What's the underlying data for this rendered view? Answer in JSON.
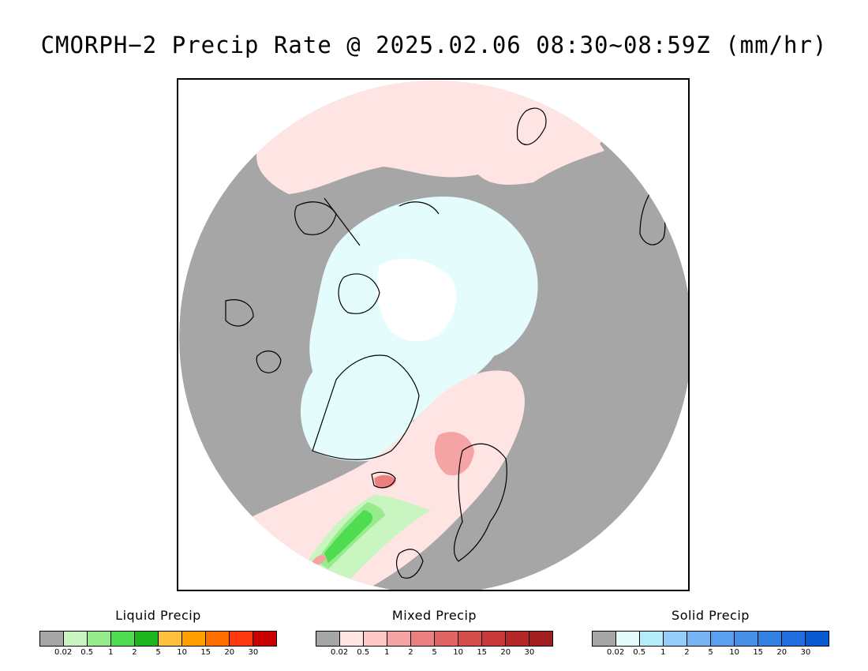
{
  "title": "CMORPH−2 Precip Rate @ 2025.02.06 08:30~08:59Z (mm/hr)",
  "map": {
    "projection": "north-polar-stereographic",
    "background_color": "#a6a6a6",
    "coastline_color": "#000000"
  },
  "legends": [
    {
      "id": "liquid",
      "title": "Liquid Precip",
      "colors": [
        "#a6a6a6",
        "#c8f5c0",
        "#96ec8c",
        "#50dc50",
        "#1eb41e",
        "#ffc040",
        "#ffa000",
        "#ff7000",
        "#ff3a10",
        "#c80000"
      ],
      "ticks": [
        "0.02",
        "0.5",
        "1",
        "2",
        "5",
        "10",
        "15",
        "20",
        "30"
      ]
    },
    {
      "id": "mixed",
      "title": "Mixed Precip",
      "colors": [
        "#a6a6a6",
        "#ffe4e4",
        "#ffc8c8",
        "#f4a4a4",
        "#ea8080",
        "#e06464",
        "#d44c4c",
        "#c83a3a",
        "#b42828",
        "#a01e1e"
      ],
      "ticks": [
        "0.02",
        "0.5",
        "1",
        "2",
        "5",
        "10",
        "15",
        "20",
        "30"
      ]
    },
    {
      "id": "solid",
      "title": "Solid Precip",
      "colors": [
        "#a6a6a6",
        "#e4fcfc",
        "#b4ecfa",
        "#96ccf8",
        "#78b4f4",
        "#5aa0ee",
        "#4690e8",
        "#3280e2",
        "#206ee0",
        "#0a5ad2"
      ],
      "ticks": [
        "0.02",
        "0.5",
        "1",
        "2",
        "5",
        "10",
        "15",
        "20",
        "30"
      ]
    }
  ]
}
